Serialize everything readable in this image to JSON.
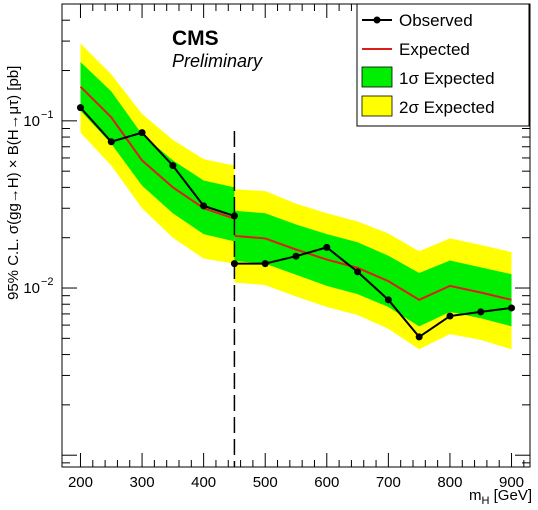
{
  "chart_data": {
    "type": "line",
    "title": "",
    "annotations": {
      "experiment": "CMS",
      "status": "Preliminary"
    },
    "xlabel": {
      "main": "m",
      "sub": "H",
      "unit": " [GeV]"
    },
    "ylabel": "95% C.L. σ(gg→H) × B(H→μτ) [pb]",
    "xlim": [
      170,
      930
    ],
    "ylim": [
      0.00085,
      0.5
    ],
    "y_scale": "log",
    "x_ticks": [
      200,
      300,
      400,
      500,
      600,
      700,
      800,
      900
    ],
    "x_tick_labels": [
      "200",
      "300",
      "400",
      "500",
      "600",
      "700",
      "800",
      "900"
    ],
    "y_tick_labels": [
      {
        "value": 0.1,
        "base": "10",
        "exp": "−1"
      },
      {
        "value": 0.01,
        "base": "10",
        "exp": "−2"
      }
    ],
    "divider_x": 450,
    "legend": {
      "position": "top-right",
      "entries": [
        "Observed",
        "Expected",
        "1σ Expected",
        "2σ Expected"
      ]
    },
    "colors": {
      "observed": "#000000",
      "expected": "#dd1c1c",
      "band1": "#00ee00",
      "band2": "#ffff00"
    },
    "segments": [
      {
        "x": [
          200,
          250,
          300,
          350,
          400,
          450
        ],
        "observed": [
          0.12,
          0.075,
          0.085,
          0.054,
          0.031,
          0.027
        ],
        "expected": [
          0.16,
          0.105,
          0.058,
          0.04,
          0.03,
          0.026
        ],
        "band1_low": [
          0.115,
          0.073,
          0.041,
          0.028,
          0.021,
          0.019
        ],
        "band1_high": [
          0.225,
          0.15,
          0.083,
          0.058,
          0.044,
          0.04
        ],
        "band2_low": [
          0.085,
          0.054,
          0.03,
          0.02,
          0.015,
          0.014
        ],
        "band2_high": [
          0.29,
          0.19,
          0.11,
          0.077,
          0.059,
          0.054
        ]
      },
      {
        "x": [
          450,
          500,
          550,
          600,
          650,
          700,
          750,
          800,
          850,
          900
        ],
        "observed": [
          0.014,
          0.014,
          0.0155,
          0.0175,
          0.0125,
          0.0085,
          0.0051,
          0.0068,
          0.0072,
          0.0076
        ],
        "expected": [
          0.0205,
          0.0198,
          0.017,
          0.0148,
          0.0132,
          0.011,
          0.0085,
          0.0103,
          0.0094,
          0.0085
        ],
        "band1_low": [
          0.0145,
          0.014,
          0.012,
          0.0103,
          0.0092,
          0.0077,
          0.0059,
          0.0072,
          0.0066,
          0.0059
        ],
        "band1_high": [
          0.029,
          0.028,
          0.024,
          0.021,
          0.0188,
          0.0156,
          0.0123,
          0.0146,
          0.0133,
          0.0121
        ],
        "band2_low": [
          0.0108,
          0.0104,
          0.0089,
          0.0077,
          0.0069,
          0.0057,
          0.0043,
          0.0053,
          0.0049,
          0.0043
        ],
        "band2_high": [
          0.039,
          0.038,
          0.032,
          0.028,
          0.025,
          0.0212,
          0.0166,
          0.0198,
          0.0181,
          0.0164
        ]
      }
    ]
  }
}
